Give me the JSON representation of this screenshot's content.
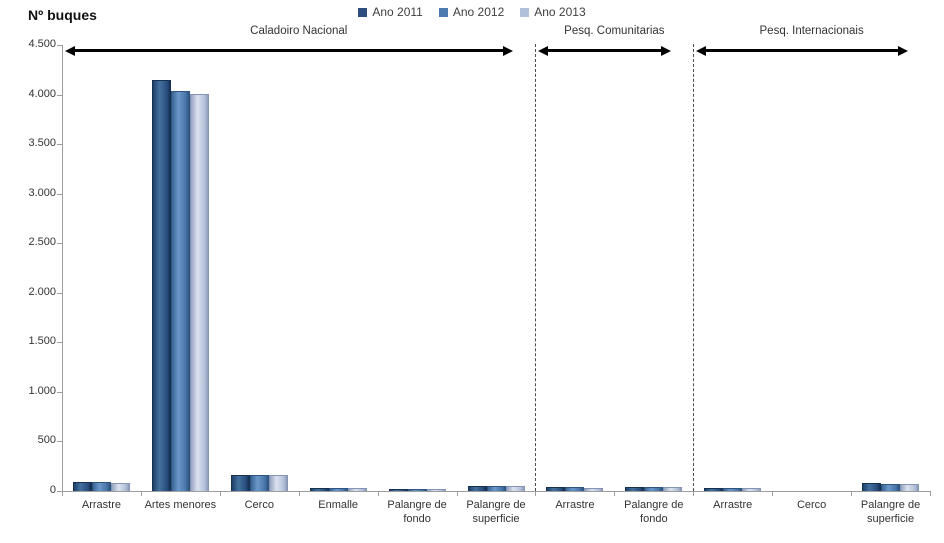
{
  "title": "Nº buques",
  "chart_data": {
    "type": "bar",
    "title": "Nº buques",
    "ylabel": "Nº buques",
    "ylim": [
      0,
      4500
    ],
    "ytick_interval": 500,
    "ytick_labels": [
      "4.500",
      "4.000",
      "3.500",
      "3.000",
      "2.500",
      "2.000",
      "1.500",
      "1.000",
      "500",
      "0"
    ],
    "grid": false,
    "legend_position": "top-center",
    "categories": [
      "Arrastre",
      "Artes menores",
      "Cerco",
      "Enmalle",
      "Palangre de fondo",
      "Palangre de superficie",
      "Arrastre",
      "Palangre de fondo",
      "Arrastre",
      "Cerco",
      "Palangre de superficie"
    ],
    "sections": [
      {
        "label": "Caladoiro Nacional",
        "start_category": 0,
        "end_category": 5
      },
      {
        "label": "Pesq. Comunitarias",
        "start_category": 6,
        "end_category": 7
      },
      {
        "label": "Pesq. Internacionais",
        "start_category": 8,
        "end_category": 10
      }
    ],
    "series": [
      {
        "name": "Ano 2011",
        "color": "#2c4d7e",
        "border": "#16304f",
        "gradient": [
          "#1e4068",
          "#44719f",
          "#2a5080",
          "#173257"
        ],
        "values": [
          88,
          4150,
          162,
          34,
          18,
          55,
          38,
          44,
          32,
          0,
          76
        ]
      },
      {
        "name": "Ano 2012",
        "color": "#4d7bb0",
        "border": "#2e5480",
        "gradient": [
          "#3a6596",
          "#6b97c9",
          "#4a77ab",
          "#2f557f"
        ],
        "values": [
          86,
          4040,
          160,
          32,
          17,
          54,
          36,
          42,
          30,
          0,
          74
        ]
      },
      {
        "name": "Ano 2013",
        "color": "#b1c0da",
        "border": "#8494b5",
        "gradient": [
          "#93a3c2",
          "#dce2ef",
          "#b4c1da",
          "#8d9cba"
        ],
        "values": [
          84,
          4010,
          158,
          30,
          16,
          52,
          34,
          40,
          28,
          0,
          72
        ]
      }
    ],
    "separator_style": "dashed",
    "colors": {
      "axis": "#9e9e9e",
      "text": "#333333",
      "separator": "#4d4d4d",
      "arrow": "#000000"
    }
  }
}
